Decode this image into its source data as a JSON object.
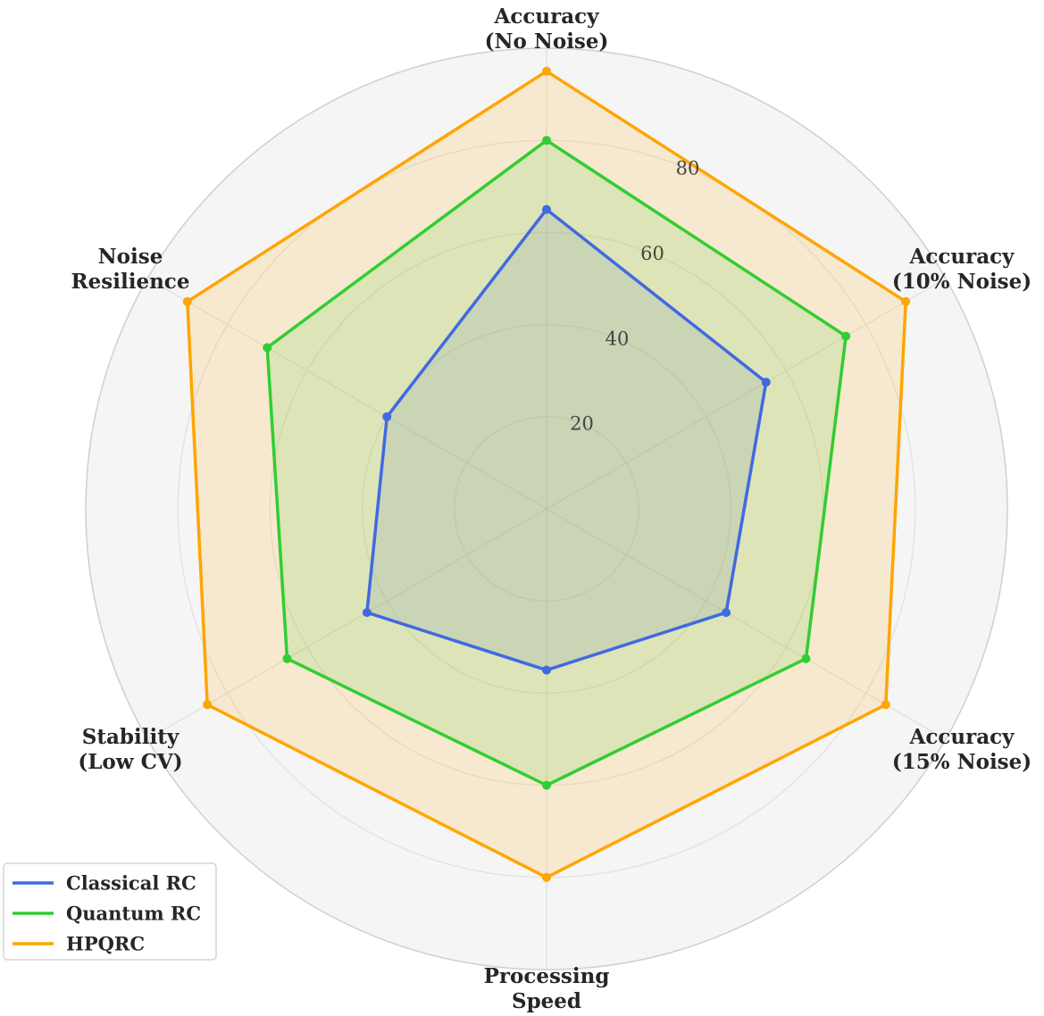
{
  "chart_data": {
    "type": "radar",
    "axes": [
      [
        "Accuracy",
        "(No Noise)"
      ],
      [
        "Accuracy",
        "(10% Noise)"
      ],
      [
        "Accuracy",
        "(15% Noise)"
      ],
      [
        "Processing",
        "Speed"
      ],
      [
        "Stability",
        "(Low CV)"
      ],
      [
        "Noise",
        "Resilience"
      ]
    ],
    "r_ticks": [
      20,
      40,
      60,
      80
    ],
    "r_tick_labels": [
      "20",
      "40",
      "60",
      "80"
    ],
    "rlim": [
      0,
      100
    ],
    "grid": true,
    "legend_position": "bottom-left",
    "series": [
      {
        "name": "Classical RC",
        "color": "#4169e1",
        "values": [
          65,
          55,
          45,
          35,
          45,
          40
        ]
      },
      {
        "name": "Quantum RC",
        "color": "#32cd32",
        "values": [
          80,
          75,
          65,
          60,
          65,
          70
        ]
      },
      {
        "name": "HPQRC",
        "color": "#ffa500",
        "values": [
          95,
          90,
          85,
          80,
          85,
          90
        ]
      }
    ]
  }
}
